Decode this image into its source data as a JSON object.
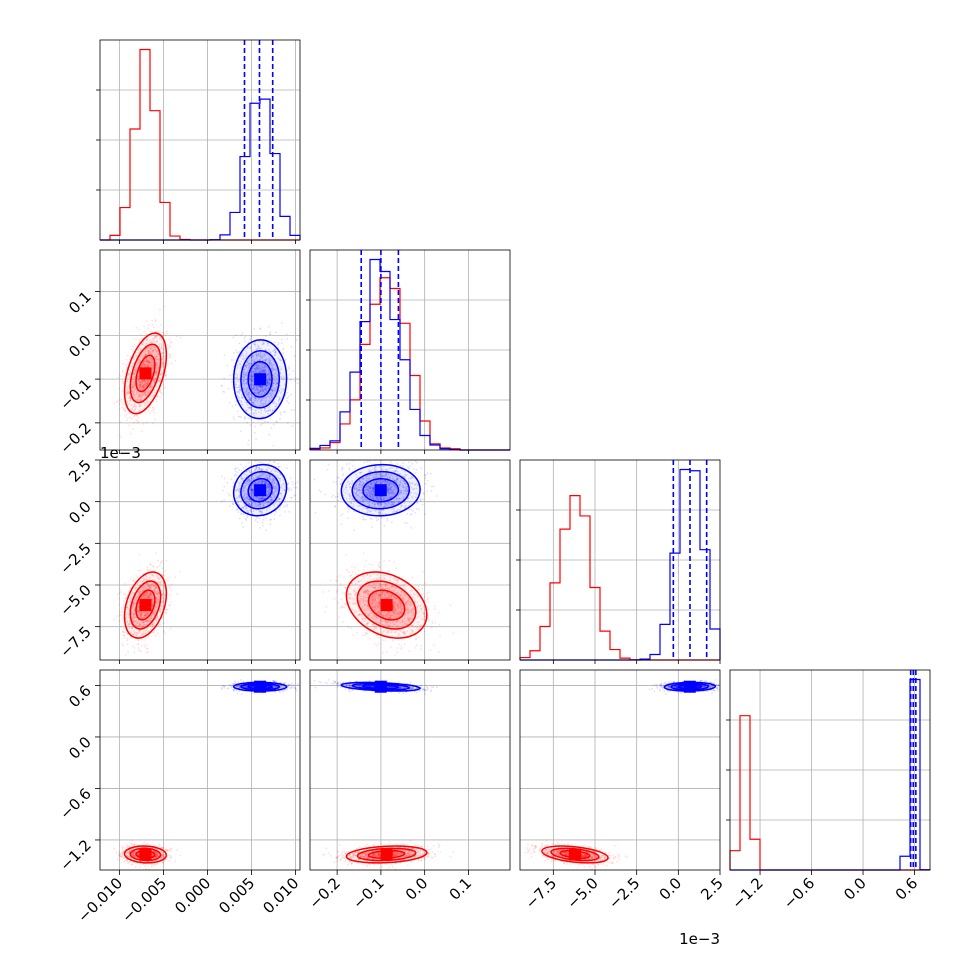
{
  "chart_data": {
    "type": "corner",
    "parameters": [
      {
        "id": "p0",
        "tick_labels": [
          "−0.010",
          "−0.005",
          "0.000",
          "0.005",
          "0.010"
        ],
        "ticks": [
          -0.01,
          -0.005,
          0.0,
          0.005,
          0.01
        ],
        "xlim": [
          -0.0122,
          0.0105
        ],
        "offset_label": ""
      },
      {
        "id": "p1",
        "tick_labels": [
          "−0.2",
          "−0.1",
          "0.0",
          "0.1"
        ],
        "ticks": [
          -0.2,
          -0.1,
          0.0,
          0.1
        ],
        "xlim": [
          -0.262,
          0.195
        ],
        "offset_label": ""
      },
      {
        "id": "p2",
        "tick_labels": [
          "−7.5",
          "−5.0",
          "−2.5",
          "0.0",
          "2.5"
        ],
        "ticks": [
          -7.5,
          -5.0,
          -2.5,
          0.0,
          2.5
        ],
        "xlim": [
          -9.5,
          2.5
        ],
        "offset_label": "1e−3"
      },
      {
        "id": "p3",
        "tick_labels": [
          "−1.2",
          "−0.6",
          "0.0",
          "0.6"
        ],
        "ticks": [
          -1.2,
          -0.6,
          0.0,
          0.6
        ],
        "xlim": [
          -1.55,
          0.78
        ],
        "offset_label": ""
      }
    ],
    "series": [
      {
        "color": "#ff0000",
        "means": [
          -0.007,
          -0.085,
          -6.2,
          -1.37
        ],
        "sds": [
          0.0012,
          0.045,
          1.15,
          0.05
        ],
        "correlations": {
          "0-1": 0.45,
          "0-2": 0.55,
          "1-2": -0.5,
          "2-3": -0.45,
          "1-3": 0.1
        }
      },
      {
        "color": "#0000ff",
        "means": [
          0.006,
          -0.1,
          0.7,
          0.585
        ],
        "sds": [
          0.0015,
          0.045,
          0.75,
          0.025
        ],
        "correlations": {
          "0-1": 0.05,
          "0-2": 0.1,
          "1-2": 0.05,
          "2-3": 0.1,
          "1-3": -0.4
        }
      }
    ],
    "quantile_lines": {
      "color": "#0000ff",
      "p0": [
        0.0042,
        0.0059,
        0.0074
      ],
      "p1": [
        -0.145,
        -0.1,
        -0.06
      ],
      "p2": [
        -0.3,
        0.7,
        1.7
      ],
      "p3": [
        0.555,
        0.585,
        0.615
      ]
    },
    "grid": true,
    "legend": "none"
  }
}
